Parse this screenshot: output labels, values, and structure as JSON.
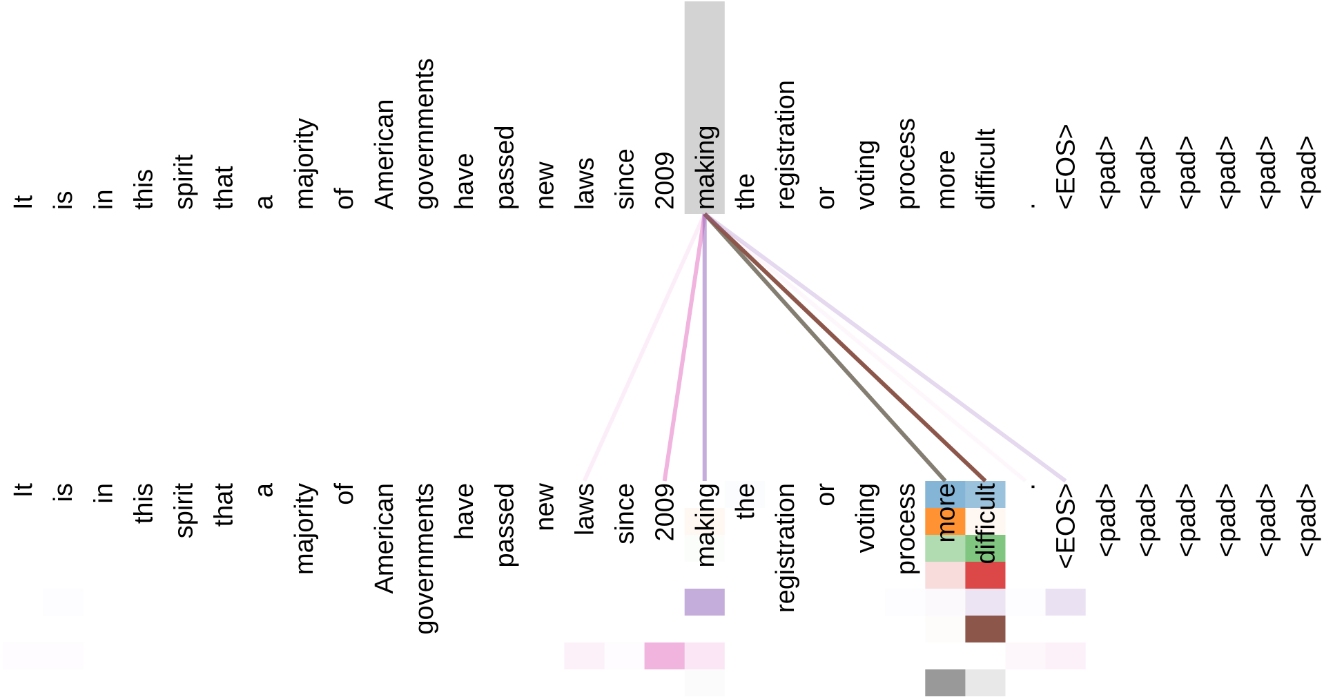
{
  "tokens": [
    "It",
    "is",
    "in",
    "this",
    "spirit",
    "that",
    "a",
    "majority",
    "of",
    "American",
    "governments",
    "have",
    "passed",
    "new",
    "laws",
    "since",
    "2009",
    "making",
    "the",
    "registration",
    "or",
    "voting",
    "process",
    "more",
    "difficult",
    ".",
    "<EOS>",
    "<pad>",
    "<pad>",
    "<pad>",
    "<pad>",
    "<pad>",
    "<pad>"
  ],
  "selected_token_index": 17,
  "colors": {
    "selected_highlight": "#d3d3d3",
    "head_palette": [
      "#1f77b4",
      "#ff7f0e",
      "#2ca02c",
      "#d62728",
      "#9467bd",
      "#8c564b",
      "#e377c2",
      "#7f7f7f"
    ]
  },
  "attention_lines": [
    {
      "target": 14,
      "color": "#e377c2",
      "weight": 0.12
    },
    {
      "target": 16,
      "color": "#e377c2",
      "weight": 0.55
    },
    {
      "target": 17,
      "color": "#9467bd",
      "weight": 0.55
    },
    {
      "target": 23,
      "color": "#7d776a",
      "weight": 0.95
    },
    {
      "target": 24,
      "color": "#8c564b",
      "weight": 1.0
    },
    {
      "target": 25,
      "color": "#e377c2",
      "weight": 0.06
    },
    {
      "target": 26,
      "color": "#9467bd",
      "weight": 0.25
    }
  ],
  "head_weights": [
    [
      {
        "token": 18,
        "w": 0.02
      },
      {
        "token": 23,
        "w": 0.55
      },
      {
        "token": 24,
        "w": 0.45
      }
    ],
    [
      {
        "token": 17,
        "w": 0.06
      },
      {
        "token": 23,
        "w": 0.85
      },
      {
        "token": 24,
        "w": 0.06
      }
    ],
    [
      {
        "token": 17,
        "w": 0.02
      },
      {
        "token": 23,
        "w": 0.37
      },
      {
        "token": 24,
        "w": 0.6
      }
    ],
    [
      {
        "token": 23,
        "w": 0.17
      },
      {
        "token": 24,
        "w": 0.85
      }
    ],
    [
      {
        "token": 1,
        "w": 0.02
      },
      {
        "token": 22,
        "w": 0.02
      },
      {
        "token": 17,
        "w": 0.55
      },
      {
        "token": 23,
        "w": 0.04
      },
      {
        "token": 24,
        "w": 0.18
      },
      {
        "token": 25,
        "w": 0.02
      },
      {
        "token": 26,
        "w": 0.2
      }
    ],
    [
      {
        "token": 23,
        "w": 0.02
      },
      {
        "token": 24,
        "w": 1.0
      }
    ],
    [
      {
        "token": 0,
        "w": 0.02
      },
      {
        "token": 1,
        "w": 0.02
      },
      {
        "token": 14,
        "w": 0.1
      },
      {
        "token": 15,
        "w": 0.02
      },
      {
        "token": 16,
        "w": 0.55
      },
      {
        "token": 17,
        "w": 0.18
      },
      {
        "token": 25,
        "w": 0.06
      },
      {
        "token": 26,
        "w": 0.1
      }
    ],
    [
      {
        "token": 17,
        "w": 0.03
      },
      {
        "token": 23,
        "w": 0.8
      },
      {
        "token": 24,
        "w": 0.18
      }
    ]
  ]
}
